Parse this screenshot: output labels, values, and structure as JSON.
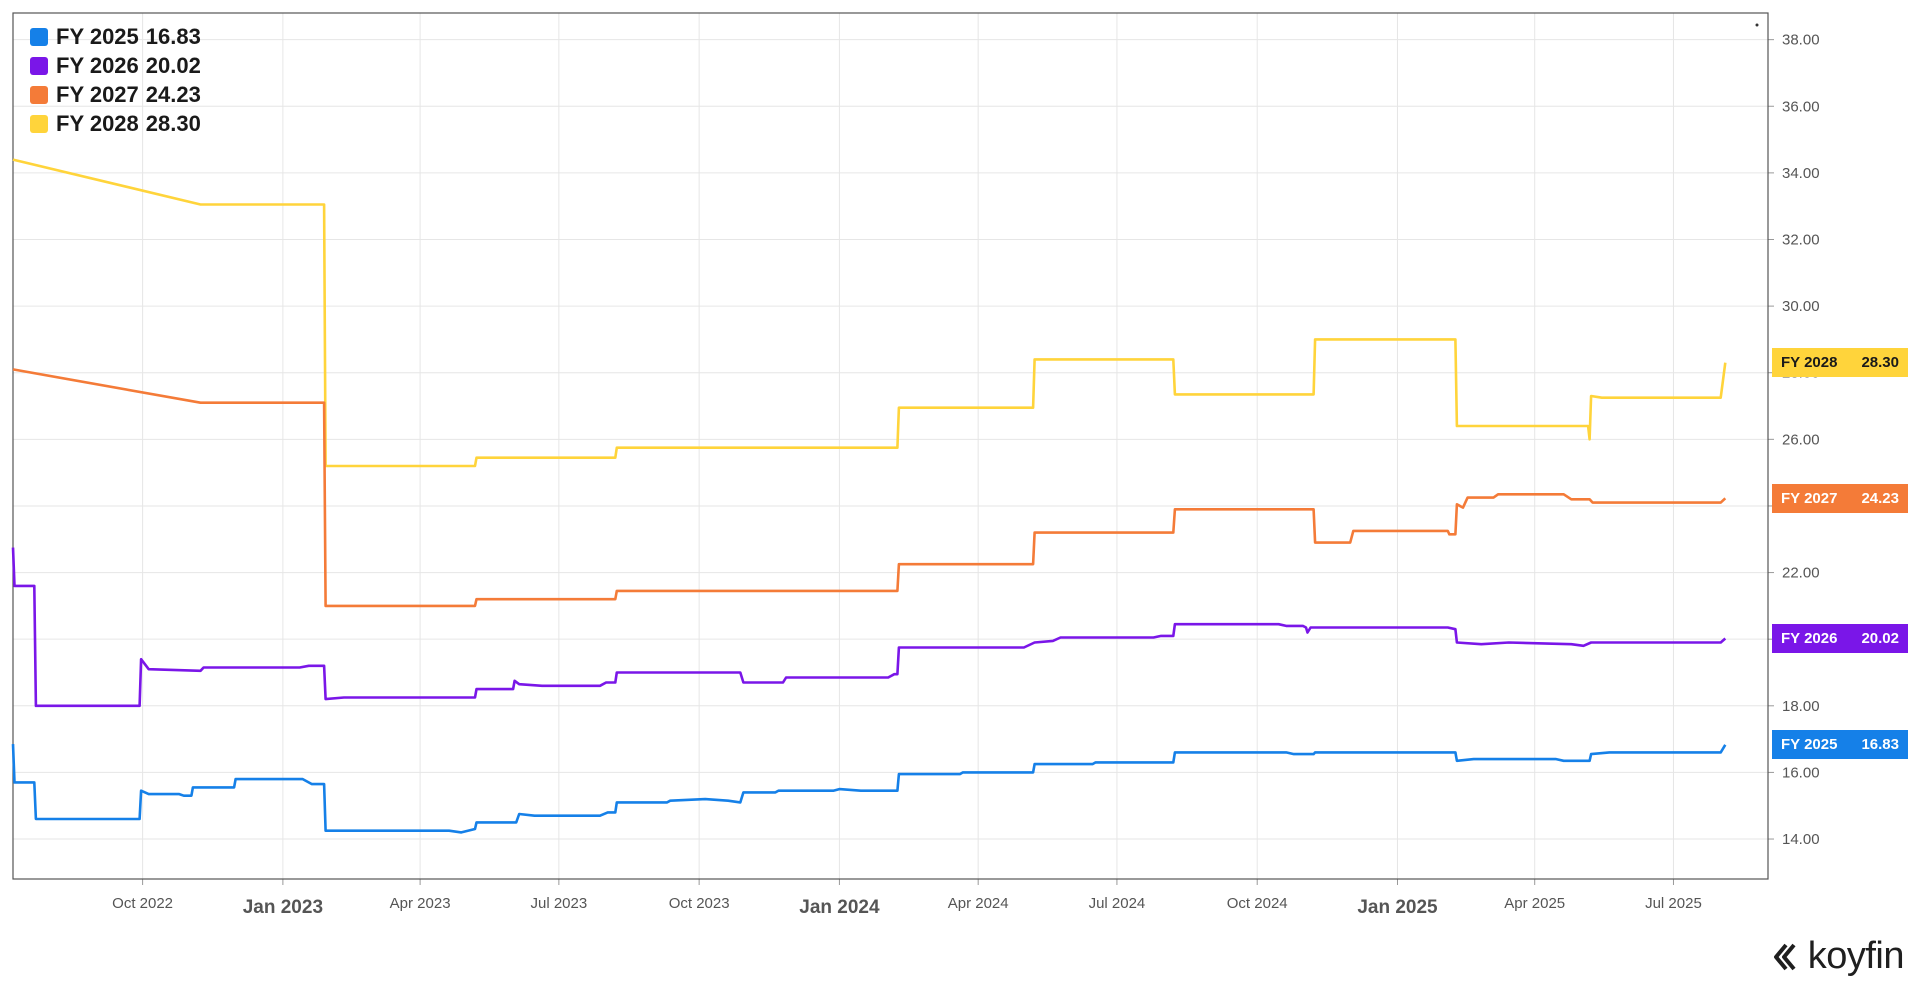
{
  "chart_data": {
    "type": "line",
    "title": "",
    "xlabel": "",
    "ylabel": "",
    "ylim": [
      12.8,
      38.8
    ],
    "xlim": [
      "2022-07-08",
      "2025-09-01"
    ],
    "y_ticks": [
      "14.00",
      "16.00",
      "18.00",
      "20.00",
      "22.00",
      "24.00",
      "26.00",
      "28.00",
      "30.00",
      "32.00",
      "34.00",
      "36.00",
      "38.00"
    ],
    "x_ticks": [
      {
        "label": "Oct 2022",
        "date": "2022-10-01",
        "major": false
      },
      {
        "label": "Jan 2023",
        "date": "2023-01-01",
        "major": true
      },
      {
        "label": "Apr 2023",
        "date": "2023-04-01",
        "major": false
      },
      {
        "label": "Jul 2023",
        "date": "2023-07-01",
        "major": false
      },
      {
        "label": "Oct 2023",
        "date": "2023-10-01",
        "major": false
      },
      {
        "label": "Jan 2024",
        "date": "2024-01-01",
        "major": true
      },
      {
        "label": "Apr 2024",
        "date": "2024-04-01",
        "major": false
      },
      {
        "label": "Jul 2024",
        "date": "2024-07-01",
        "major": false
      },
      {
        "label": "Oct 2024",
        "date": "2024-10-01",
        "major": false
      },
      {
        "label": "Jan 2025",
        "date": "2025-01-01",
        "major": true
      },
      {
        "label": "Apr 2025",
        "date": "2025-04-01",
        "major": false
      },
      {
        "label": "Jul 2025",
        "date": "2025-07-01",
        "major": false
      }
    ],
    "grid": true,
    "legend_position": "top-left",
    "series": [
      {
        "name": "FY 2028",
        "last": "28.30",
        "color": "#FFD43B",
        "label_text_color": "#1a1a1a",
        "points": [
          [
            "2022-07-08",
            34.4
          ],
          [
            "2022-11-08",
            33.05
          ],
          [
            "2023-01-28",
            33.05
          ],
          [
            "2023-01-29",
            25.2
          ],
          [
            "2023-05-07",
            25.2
          ],
          [
            "2023-05-08",
            25.45
          ],
          [
            "2023-08-07",
            25.45
          ],
          [
            "2023-08-08",
            25.75
          ],
          [
            "2024-02-08",
            25.75
          ],
          [
            "2024-02-09",
            26.95
          ],
          [
            "2024-05-07",
            26.95
          ],
          [
            "2024-05-08",
            28.4
          ],
          [
            "2024-08-07",
            28.4
          ],
          [
            "2024-08-08",
            27.35
          ],
          [
            "2024-11-07",
            27.35
          ],
          [
            "2024-11-08",
            29.0
          ],
          [
            "2025-02-08",
            29.0
          ],
          [
            "2025-02-09",
            26.4
          ],
          [
            "2025-05-06",
            26.4
          ],
          [
            "2025-05-07",
            26.0
          ],
          [
            "2025-05-08",
            27.3
          ],
          [
            "2025-05-15",
            27.25
          ],
          [
            "2025-08-01",
            27.25
          ],
          [
            "2025-08-04",
            28.3
          ]
        ]
      },
      {
        "name": "FY 2027",
        "last": "24.23",
        "color": "#F47B38",
        "label_text_color": "#ffffff",
        "points": [
          [
            "2022-07-08",
            28.1
          ],
          [
            "2022-11-08",
            27.1
          ],
          [
            "2023-01-28",
            27.1
          ],
          [
            "2023-01-29",
            21.0
          ],
          [
            "2023-05-07",
            21.0
          ],
          [
            "2023-05-08",
            21.2
          ],
          [
            "2023-08-07",
            21.2
          ],
          [
            "2023-08-08",
            21.45
          ],
          [
            "2024-02-08",
            21.45
          ],
          [
            "2024-02-09",
            22.25
          ],
          [
            "2024-05-07",
            22.25
          ],
          [
            "2024-05-08",
            23.2
          ],
          [
            "2024-08-07",
            23.2
          ],
          [
            "2024-08-08",
            23.9
          ],
          [
            "2024-11-07",
            23.9
          ],
          [
            "2024-11-08",
            22.9
          ],
          [
            "2024-12-01",
            22.9
          ],
          [
            "2024-12-03",
            23.25
          ],
          [
            "2025-02-03",
            23.25
          ],
          [
            "2025-02-04",
            23.15
          ],
          [
            "2025-02-08",
            23.15
          ],
          [
            "2025-02-09",
            24.05
          ],
          [
            "2025-02-13",
            23.95
          ],
          [
            "2025-02-16",
            24.25
          ],
          [
            "2025-03-05",
            24.25
          ],
          [
            "2025-03-08",
            24.35
          ],
          [
            "2025-04-20",
            24.35
          ],
          [
            "2025-04-25",
            24.2
          ],
          [
            "2025-05-07",
            24.2
          ],
          [
            "2025-05-09",
            24.1
          ],
          [
            "2025-08-01",
            24.1
          ],
          [
            "2025-08-04",
            24.23
          ]
        ]
      },
      {
        "name": "FY 2026",
        "last": "20.02",
        "color": "#7A16E8",
        "label_text_color": "#ffffff",
        "points": [
          [
            "2022-07-08",
            22.75
          ],
          [
            "2022-07-09",
            21.6
          ],
          [
            "2022-07-22",
            21.6
          ],
          [
            "2022-07-23",
            18.0
          ],
          [
            "2022-09-29",
            18.0
          ],
          [
            "2022-09-30",
            19.4
          ],
          [
            "2022-10-05",
            19.1
          ],
          [
            "2022-11-08",
            19.05
          ],
          [
            "2022-11-10",
            19.15
          ],
          [
            "2023-01-12",
            19.15
          ],
          [
            "2023-01-18",
            19.2
          ],
          [
            "2023-01-28",
            19.2
          ],
          [
            "2023-01-29",
            18.2
          ],
          [
            "2023-02-10",
            18.25
          ],
          [
            "2023-05-07",
            18.25
          ],
          [
            "2023-05-08",
            18.5
          ],
          [
            "2023-06-01",
            18.5
          ],
          [
            "2023-06-02",
            18.75
          ],
          [
            "2023-06-05",
            18.65
          ],
          [
            "2023-06-20",
            18.6
          ],
          [
            "2023-07-28",
            18.6
          ],
          [
            "2023-08-01",
            18.7
          ],
          [
            "2023-08-07",
            18.7
          ],
          [
            "2023-08-08",
            19.0
          ],
          [
            "2023-10-28",
            19.0
          ],
          [
            "2023-10-30",
            18.7
          ],
          [
            "2023-11-25",
            18.7
          ],
          [
            "2023-11-27",
            18.85
          ],
          [
            "2024-02-02",
            18.85
          ],
          [
            "2024-02-06",
            18.95
          ],
          [
            "2024-02-08",
            18.95
          ],
          [
            "2024-02-09",
            19.75
          ],
          [
            "2024-05-01",
            19.75
          ],
          [
            "2024-05-08",
            19.9
          ],
          [
            "2024-05-20",
            19.95
          ],
          [
            "2024-05-25",
            20.05
          ],
          [
            "2024-07-25",
            20.05
          ],
          [
            "2024-07-30",
            20.1
          ],
          [
            "2024-08-07",
            20.1
          ],
          [
            "2024-08-08",
            20.45
          ],
          [
            "2024-10-15",
            20.45
          ],
          [
            "2024-10-20",
            20.4
          ],
          [
            "2024-10-31",
            20.4
          ],
          [
            "2024-11-02",
            20.35
          ],
          [
            "2024-11-03",
            20.2
          ],
          [
            "2024-11-05",
            20.35
          ],
          [
            "2025-02-03",
            20.35
          ],
          [
            "2025-02-08",
            20.3
          ],
          [
            "2025-02-09",
            19.9
          ],
          [
            "2025-02-25",
            19.85
          ],
          [
            "2025-03-15",
            19.9
          ],
          [
            "2025-04-25",
            19.85
          ],
          [
            "2025-05-03",
            19.8
          ],
          [
            "2025-05-08",
            19.9
          ],
          [
            "2025-08-01",
            19.9
          ],
          [
            "2025-08-04",
            20.02
          ]
        ]
      },
      {
        "name": "FY 2025",
        "last": "16.83",
        "color": "#1580E8",
        "label_text_color": "#ffffff",
        "points": [
          [
            "2022-07-08",
            16.85
          ],
          [
            "2022-07-09",
            15.7
          ],
          [
            "2022-07-22",
            15.7
          ],
          [
            "2022-07-23",
            14.6
          ],
          [
            "2022-09-29",
            14.6
          ],
          [
            "2022-09-30",
            15.45
          ],
          [
            "2022-10-05",
            15.35
          ],
          [
            "2022-10-25",
            15.35
          ],
          [
            "2022-10-28",
            15.3
          ],
          [
            "2022-11-02",
            15.3
          ],
          [
            "2022-11-03",
            15.55
          ],
          [
            "2022-11-30",
            15.55
          ],
          [
            "2022-12-01",
            15.8
          ],
          [
            "2023-01-14",
            15.8
          ],
          [
            "2023-01-20",
            15.65
          ],
          [
            "2023-01-28",
            15.65
          ],
          [
            "2023-01-29",
            14.25
          ],
          [
            "2023-04-20",
            14.25
          ],
          [
            "2023-04-28",
            14.2
          ],
          [
            "2023-05-07",
            14.3
          ],
          [
            "2023-05-08",
            14.5
          ],
          [
            "2023-06-03",
            14.5
          ],
          [
            "2023-06-05",
            14.75
          ],
          [
            "2023-06-15",
            14.7
          ],
          [
            "2023-07-28",
            14.7
          ],
          [
            "2023-08-02",
            14.8
          ],
          [
            "2023-08-07",
            14.8
          ],
          [
            "2023-08-08",
            15.1
          ],
          [
            "2023-09-10",
            15.1
          ],
          [
            "2023-09-12",
            15.15
          ],
          [
            "2023-10-05",
            15.2
          ],
          [
            "2023-10-20",
            15.15
          ],
          [
            "2023-10-28",
            15.1
          ],
          [
            "2023-10-30",
            15.4
          ],
          [
            "2023-11-20",
            15.4
          ],
          [
            "2023-11-22",
            15.45
          ],
          [
            "2023-12-28",
            15.45
          ],
          [
            "2024-01-01",
            15.5
          ],
          [
            "2024-01-15",
            15.45
          ],
          [
            "2024-02-08",
            15.45
          ],
          [
            "2024-02-09",
            15.95
          ],
          [
            "2024-03-20",
            15.95
          ],
          [
            "2024-03-22",
            16.0
          ],
          [
            "2024-05-07",
            16.0
          ],
          [
            "2024-05-08",
            16.25
          ],
          [
            "2024-06-15",
            16.25
          ],
          [
            "2024-06-17",
            16.3
          ],
          [
            "2024-08-07",
            16.3
          ],
          [
            "2024-08-08",
            16.6
          ],
          [
            "2024-10-20",
            16.6
          ],
          [
            "2024-10-25",
            16.55
          ],
          [
            "2024-11-07",
            16.55
          ],
          [
            "2024-11-08",
            16.6
          ],
          [
            "2025-02-08",
            16.6
          ],
          [
            "2025-02-09",
            16.35
          ],
          [
            "2025-02-20",
            16.4
          ],
          [
            "2025-04-15",
            16.4
          ],
          [
            "2025-04-20",
            16.35
          ],
          [
            "2025-05-07",
            16.35
          ],
          [
            "2025-05-08",
            16.55
          ],
          [
            "2025-05-20",
            16.6
          ],
          [
            "2025-08-01",
            16.6
          ],
          [
            "2025-08-04",
            16.83
          ]
        ]
      }
    ]
  },
  "legend": [
    {
      "name": "FY 2025",
      "value": "16.83",
      "color": "#1580E8"
    },
    {
      "name": "FY 2026",
      "value": "20.02",
      "color": "#7A16E8"
    },
    {
      "name": "FY 2027",
      "value": "24.23",
      "color": "#F47B38"
    },
    {
      "name": "FY 2028",
      "value": "28.30",
      "color": "#FFD43B"
    }
  ],
  "tags": [
    {
      "name": "FY 2028",
      "value": "28.30",
      "color": "#FFD43B",
      "text_color": "#1a1a1a"
    },
    {
      "name": "FY 2027",
      "value": "24.23",
      "color": "#F47B38",
      "text_color": "#ffffff"
    },
    {
      "name": "FY 2026",
      "value": "20.02",
      "color": "#7A16E8",
      "text_color": "#ffffff"
    },
    {
      "name": "FY 2025",
      "value": "16.83",
      "color": "#1580E8",
      "text_color": "#ffffff"
    }
  ],
  "brand": {
    "name": "koyfin",
    "icon": "koyfin-logo-icon"
  }
}
